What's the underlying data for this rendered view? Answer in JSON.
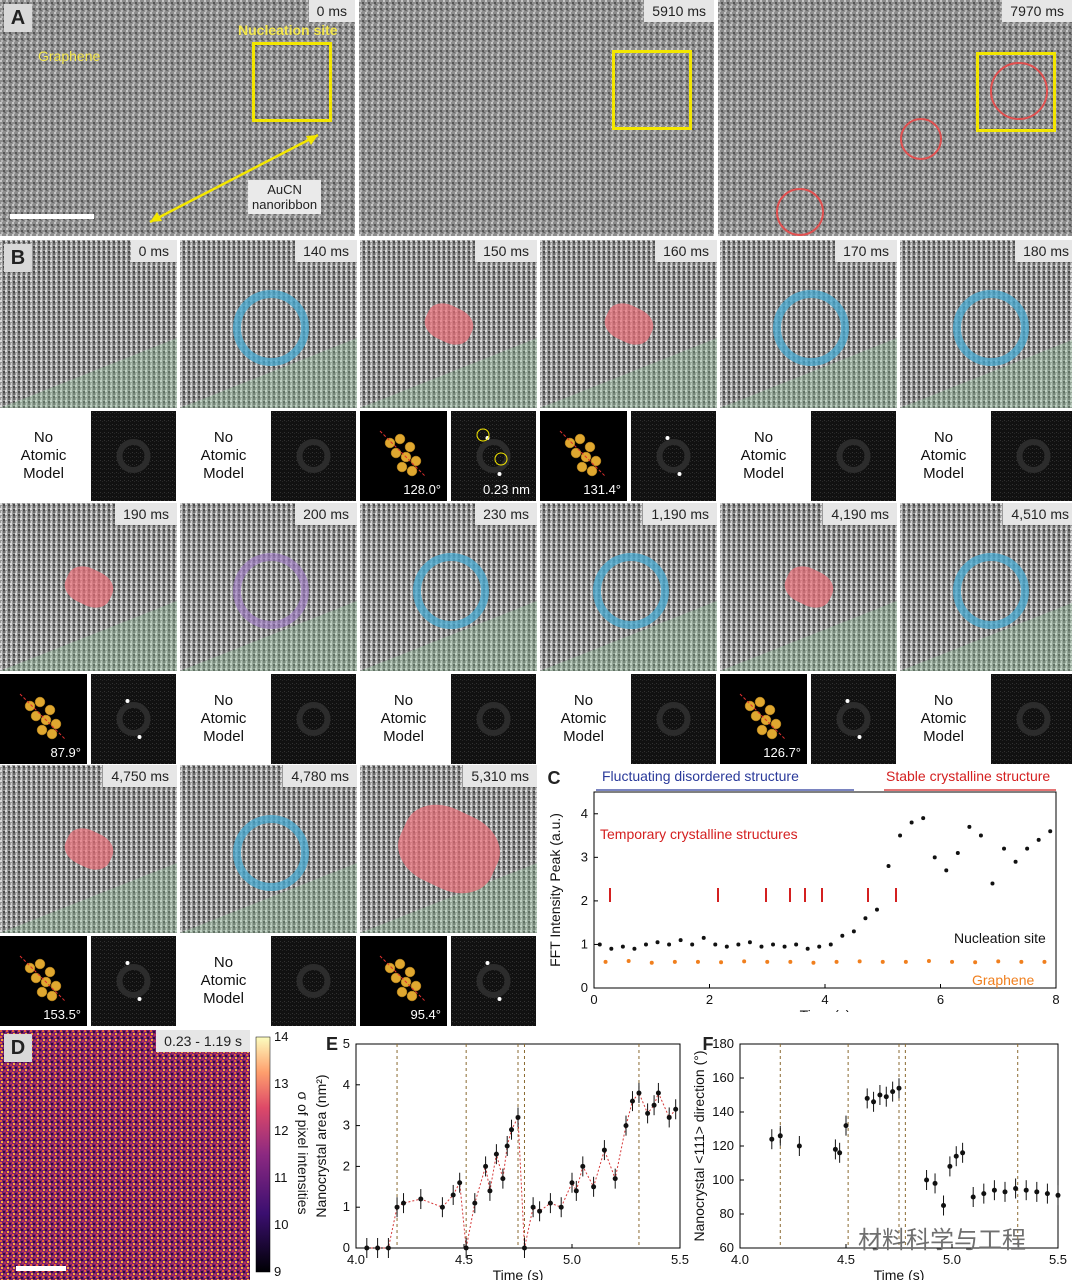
{
  "panelA": {
    "letter": "A",
    "frames": [
      {
        "time": "0 ms"
      },
      {
        "time": "5910 ms"
      },
      {
        "time": "7970 ms"
      }
    ],
    "labels": {
      "graphene": "Graphene",
      "nucleation_site": "Nucleation site",
      "aucn_line1": "AuCN",
      "aucn_line2": "nanoribbon"
    }
  },
  "panelB": {
    "letter": "B",
    "no_model_line1": "No",
    "no_model_line2": "Atomic",
    "no_model_line3": "Model",
    "fft_label": "0.23 nm",
    "row1": [
      {
        "time": "0 ms",
        "marker": "none",
        "model": false
      },
      {
        "time": "140 ms",
        "marker": "blue",
        "model": false
      },
      {
        "time": "150 ms",
        "marker": "red",
        "model": true,
        "angle": "128.0°"
      },
      {
        "time": "160 ms",
        "marker": "red",
        "model": true,
        "angle": "131.4°"
      },
      {
        "time": "170 ms",
        "marker": "blue",
        "model": false
      },
      {
        "time": "180 ms",
        "marker": "blue",
        "model": false
      }
    ],
    "row2": [
      {
        "time": "190 ms",
        "marker": "red",
        "model": true,
        "angle": "87.9°"
      },
      {
        "time": "200 ms",
        "marker": "purple",
        "model": false
      },
      {
        "time": "230 ms",
        "marker": "blue",
        "model": false
      },
      {
        "time": "1,190 ms",
        "marker": "blue",
        "model": false
      },
      {
        "time": "4,190 ms",
        "marker": "red",
        "model": true,
        "angle": "126.7°"
      },
      {
        "time": "4,510 ms",
        "marker": "blue",
        "model": false
      }
    ],
    "row3": [
      {
        "time": "4,750 ms",
        "marker": "red",
        "model": true,
        "angle": "153.5°"
      },
      {
        "time": "4,780 ms",
        "marker": "blue",
        "model": false
      },
      {
        "time": "5,310 ms",
        "marker": "red",
        "model": true,
        "angle": "95.4°"
      }
    ]
  },
  "panelC": {
    "letter": "C",
    "top_left": "Fluctuating disordered structure",
    "top_right": "Stable crystalline structure",
    "annotation": "Temporary crystalline structures",
    "ylabel": "FFT Intensity Peak (a.u.)",
    "xlabel": "Time (s)",
    "series_nucleation": "Nucleation site",
    "series_graphene": "Graphene",
    "colors": {
      "nucleation": "#111111",
      "graphene": "#f07f1e",
      "arrow_red": "#d42020",
      "arrow_blue": "#2a3a9a"
    }
  },
  "panelD": {
    "letter": "D",
    "range_label": "0.23 - 1.19 s",
    "colorbar_label": "σ of pixel intensities",
    "colorbar_ticks": [
      "14",
      "13",
      "12",
      "11",
      "10",
      "9"
    ]
  },
  "panelE": {
    "letter": "E",
    "ylabel": "Nanocrystal area (nm²)",
    "xlabel": "Time (s)"
  },
  "panelF": {
    "letter": "F",
    "ylabel": "Nanocrystal <111> direction (°)",
    "xlabel": "Time (s)"
  },
  "watermark": "材料科学与工程",
  "chart_data": [
    {
      "type": "scatter",
      "id": "C",
      "xlabel": "Time (s)",
      "ylabel": "FFT Intensity Peak (a.u.)",
      "xlim": [
        0,
        8
      ],
      "ylim": [
        0,
        4.5
      ],
      "xticks": [
        0,
        2,
        4,
        6,
        8
      ],
      "yticks": [
        0,
        1,
        2,
        3,
        4
      ],
      "series": [
        {
          "name": "Nucleation site",
          "color": "#111111",
          "x": [
            0.1,
            0.3,
            0.5,
            0.7,
            0.9,
            1.1,
            1.3,
            1.5,
            1.7,
            1.9,
            2.1,
            2.3,
            2.5,
            2.7,
            2.9,
            3.1,
            3.3,
            3.5,
            3.7,
            3.9,
            4.1,
            4.3,
            4.5,
            4.7,
            4.9,
            5.1,
            5.3,
            5.5,
            5.7,
            5.9,
            6.1,
            6.3,
            6.5,
            6.7,
            6.9,
            7.1,
            7.3,
            7.5,
            7.7,
            7.9
          ],
          "y": [
            1.0,
            0.9,
            0.95,
            0.9,
            1.0,
            1.05,
            1.0,
            1.1,
            1.0,
            1.15,
            1.0,
            0.95,
            1.0,
            1.05,
            0.95,
            1.0,
            0.95,
            1.0,
            0.9,
            0.95,
            1.0,
            1.2,
            1.3,
            1.6,
            1.8,
            2.8,
            3.5,
            3.8,
            3.9,
            3.0,
            2.7,
            3.1,
            3.7,
            3.5,
            2.4,
            3.2,
            2.9,
            3.2,
            3.4,
            3.6
          ]
        },
        {
          "name": "Graphene",
          "color": "#f07f1e",
          "x": [
            0.2,
            0.6,
            1.0,
            1.4,
            1.8,
            2.2,
            2.6,
            3.0,
            3.4,
            3.8,
            4.2,
            4.6,
            5.0,
            5.4,
            5.8,
            6.2,
            6.6,
            7.0,
            7.4,
            7.8
          ],
          "y": [
            0.6,
            0.62,
            0.58,
            0.6,
            0.6,
            0.59,
            0.61,
            0.6,
            0.6,
            0.58,
            0.6,
            0.61,
            0.6,
            0.6,
            0.62,
            0.6,
            0.59,
            0.61,
            0.6,
            0.6
          ]
        }
      ]
    },
    {
      "type": "scatter",
      "id": "E",
      "xlabel": "Time (s)",
      "ylabel": "Nanocrystal area (nm²)",
      "xlim": [
        4.0,
        5.5
      ],
      "ylim": [
        0,
        5
      ],
      "xticks": [
        4.0,
        4.5,
        5.0,
        5.5
      ],
      "yticks": [
        0,
        1,
        2,
        3,
        4,
        5
      ],
      "vlines": [
        4.19,
        4.51,
        4.75,
        4.78,
        5.31
      ],
      "x": [
        4.05,
        4.1,
        4.15,
        4.19,
        4.22,
        4.3,
        4.4,
        4.45,
        4.48,
        4.51,
        4.55,
        4.6,
        4.62,
        4.65,
        4.68,
        4.7,
        4.72,
        4.75,
        4.78,
        4.82,
        4.85,
        4.9,
        4.95,
        5.0,
        5.02,
        5.05,
        5.1,
        5.15,
        5.2,
        5.25,
        5.28,
        5.31,
        5.35,
        5.38,
        5.4,
        5.45,
        5.48
      ],
      "y": [
        0,
        0,
        0,
        1.0,
        1.1,
        1.2,
        1.0,
        1.3,
        1.6,
        0,
        1.1,
        2.0,
        1.4,
        2.3,
        1.7,
        2.5,
        2.9,
        3.2,
        0,
        1.0,
        0.9,
        1.1,
        1.0,
        1.6,
        1.4,
        2.0,
        1.5,
        2.4,
        1.7,
        3.0,
        3.6,
        3.8,
        3.3,
        3.5,
        3.8,
        3.2,
        3.4
      ]
    },
    {
      "type": "scatter",
      "id": "F",
      "xlabel": "Time (s)",
      "ylabel": "Nanocrystal <111> direction (°)",
      "xlim": [
        4.0,
        5.5
      ],
      "ylim": [
        60,
        180
      ],
      "xticks": [
        4.0,
        4.5,
        5.0,
        5.5
      ],
      "yticks": [
        60,
        80,
        100,
        120,
        140,
        160,
        180
      ],
      "vlines": [
        4.19,
        4.51,
        4.75,
        4.78,
        5.31
      ],
      "x": [
        4.15,
        4.19,
        4.28,
        4.45,
        4.47,
        4.5,
        4.6,
        4.63,
        4.66,
        4.69,
        4.72,
        4.75,
        4.88,
        4.92,
        4.96,
        4.99,
        5.02,
        5.05,
        5.1,
        5.15,
        5.2,
        5.25,
        5.3,
        5.35,
        5.4,
        5.45,
        5.5
      ],
      "y": [
        124,
        126,
        120,
        118,
        116,
        132,
        148,
        146,
        150,
        149,
        152,
        154,
        100,
        98,
        85,
        108,
        114,
        116,
        90,
        92,
        94,
        93,
        95,
        94,
        93,
        92,
        91
      ]
    }
  ]
}
